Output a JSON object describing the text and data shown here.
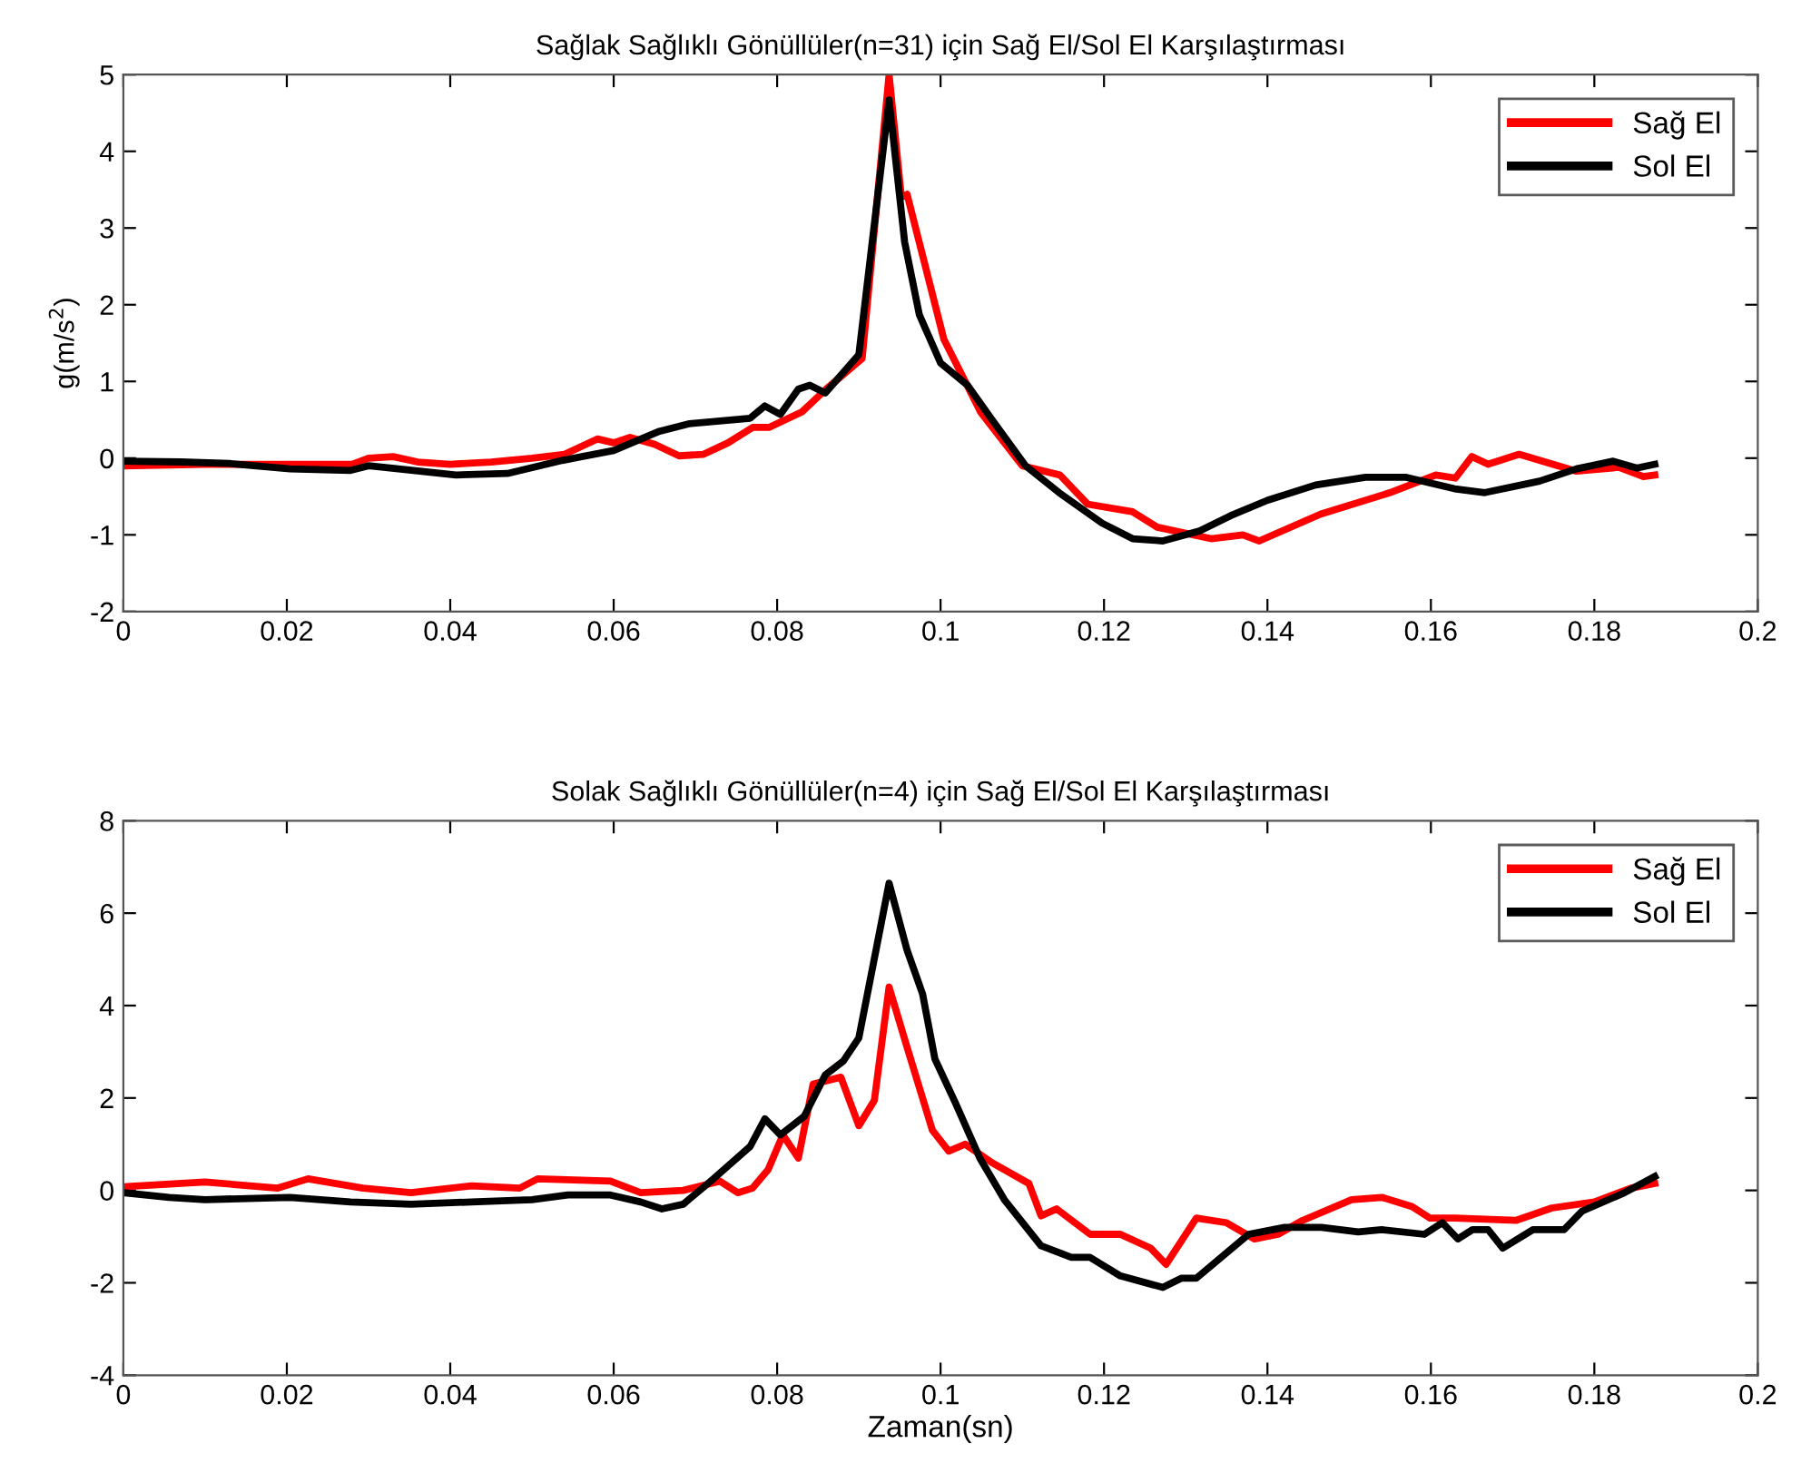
{
  "chart_data": [
    {
      "type": "line",
      "title": "Sağlak Sağlıklı Gönüllüler(n=31) için Sağ El/Sol El Karşılaştırması",
      "ylabel": "g(m/s$^{2}$)",
      "xlim": [
        0,
        0.2
      ],
      "ylim": [
        -2,
        5
      ],
      "xticks": [
        0,
        0.02,
        0.04,
        0.06,
        0.08,
        0.1,
        0.12,
        0.14,
        0.16,
        0.18,
        0.2
      ],
      "yticks": [
        -2,
        -1,
        0,
        1,
        2,
        3,
        4,
        5
      ],
      "grid": false,
      "legend": "top right",
      "marker": "none",
      "line_style": "solid",
      "series": [
        {
          "name": "Sağ El",
          "color": "#ff0000",
          "x": [
            0,
            0.01,
            0.02,
            0.028,
            0.03,
            0.033,
            0.036,
            0.04,
            0.045,
            0.05,
            0.054,
            0.058,
            0.06,
            0.062,
            0.065,
            0.068,
            0.071,
            0.074,
            0.077,
            0.079,
            0.083,
            0.086,
            0.0904,
            0.0937,
            0.0952,
            0.0959,
            0.1004,
            0.1049,
            0.11,
            0.1146,
            0.118,
            0.1235,
            0.1265,
            0.1331,
            0.137,
            0.139,
            0.1465,
            0.155,
            0.1606,
            0.163,
            0.165,
            0.167,
            0.1708,
            0.1778,
            0.183,
            0.186,
            0.1874
          ],
          "values": [
            -0.1,
            -0.08,
            -0.08,
            -0.08,
            0,
            0.02,
            -0.05,
            -0.08,
            -0.05,
            0,
            0.05,
            0.25,
            0.2,
            0.27,
            0.18,
            0.03,
            0.05,
            0.2,
            0.4,
            0.4,
            0.6,
            0.9,
            1.3,
            5.0,
            3.4,
            3.44,
            1.55,
            0.6,
            -0.1,
            -0.22,
            -0.6,
            -0.7,
            -0.9,
            -1.05,
            -1.0,
            -1.08,
            -0.73,
            -0.45,
            -0.22,
            -0.26,
            0.02,
            -0.08,
            0.05,
            -0.17,
            -0.12,
            -0.24,
            -0.22
          ]
        },
        {
          "name": "Sol El",
          "color": "#000000",
          "x": [
            0,
            0.007,
            0.013,
            0.0204,
            0.0278,
            0.03,
            0.0407,
            0.047,
            0.0537,
            0.06,
            0.0656,
            0.0693,
            0.0767,
            0.0785,
            0.0804,
            0.0826,
            0.084,
            0.0859,
            0.09,
            0.0937,
            0.0956,
            0.0974,
            0.1,
            0.1033,
            0.1063,
            0.1104,
            0.1145,
            0.1198,
            0.1235,
            0.1272,
            0.1317,
            0.1355,
            0.14,
            0.1459,
            0.152,
            0.157,
            0.1629,
            0.1666,
            0.1733,
            0.1778,
            0.1823,
            0.1852,
            0.1874
          ],
          "values": [
            -0.04,
            -0.05,
            -0.07,
            -0.14,
            -0.16,
            -0.1,
            -0.22,
            -0.2,
            -0.03,
            0.1,
            0.35,
            0.45,
            0.52,
            0.68,
            0.57,
            0.9,
            0.95,
            0.85,
            1.35,
            4.67,
            2.82,
            1.87,
            1.24,
            0.95,
            0.5,
            -0.1,
            -0.45,
            -0.85,
            -1.05,
            -1.08,
            -0.95,
            -0.75,
            -0.55,
            -0.35,
            -0.25,
            -0.25,
            -0.4,
            -0.45,
            -0.3,
            -0.14,
            -0.04,
            -0.13,
            -0.08
          ]
        }
      ]
    },
    {
      "type": "line",
      "title": "Solak Sağlıklı Gönüllüler(n=4) için Sağ El/Sol El Karşılaştırması",
      "xlabel": "Zaman(sn)",
      "xlim": [
        0,
        0.2
      ],
      "ylim": [
        -4,
        8
      ],
      "xticks": [
        0,
        0.02,
        0.04,
        0.06,
        0.08,
        0.1,
        0.12,
        0.14,
        0.16,
        0.18,
        0.2
      ],
      "yticks": [
        -4,
        -2,
        0,
        2,
        4,
        6,
        8
      ],
      "grid": false,
      "legend": "top right",
      "marker": "none",
      "line_style": "solid",
      "series": [
        {
          "name": "Sağ El",
          "color": "#ff0000",
          "x": [
            0,
            0.01,
            0.0189,
            0.0226,
            0.0293,
            0.0352,
            0.0426,
            0.0485,
            0.0507,
            0.0596,
            0.0633,
            0.0685,
            0.073,
            0.0752,
            0.077,
            0.0789,
            0.0807,
            0.0826,
            0.0844,
            0.0878,
            0.09,
            0.0919,
            0.0937,
            0.0959,
            0.099,
            0.101,
            0.103,
            0.1063,
            0.1108,
            0.1123,
            0.1142,
            0.1183,
            0.122,
            0.1257,
            0.1276,
            0.1313,
            0.135,
            0.1384,
            0.1413,
            0.1443,
            0.1503,
            0.154,
            0.1577,
            0.1599,
            0.1629,
            0.1704,
            0.1748,
            0.18,
            0.1845,
            0.1874
          ],
          "values": [
            0.08,
            0.18,
            0.05,
            0.25,
            0.05,
            -0.05,
            0.1,
            0.05,
            0.25,
            0.2,
            -0.05,
            0,
            0.2,
            -0.05,
            0.05,
            0.45,
            1.2,
            0.7,
            2.3,
            2.45,
            1.4,
            1.95,
            4.4,
            3.1,
            1.3,
            0.85,
            1.0,
            0.6,
            0.15,
            -0.55,
            -0.4,
            -0.95,
            -0.95,
            -1.25,
            -1.6,
            -0.6,
            -0.7,
            -1.05,
            -0.95,
            -0.65,
            -0.2,
            -0.15,
            -0.35,
            -0.6,
            -0.6,
            -0.65,
            -0.38,
            -0.25,
            0.05,
            0.15
          ]
        },
        {
          "name": "Sol El",
          "color": "#000000",
          "x": [
            0,
            0.0056,
            0.01,
            0.0204,
            0.0278,
            0.0352,
            0.0426,
            0.05,
            0.0544,
            0.0596,
            0.0633,
            0.0659,
            0.0685,
            0.0722,
            0.0767,
            0.0785,
            0.0804,
            0.0833,
            0.0859,
            0.0881,
            0.09,
            0.0937,
            0.0959,
            0.0978,
            0.0993,
            0.1018,
            0.1048,
            0.1078,
            0.1123,
            0.116,
            0.1183,
            0.122,
            0.1272,
            0.1295,
            0.1313,
            0.1377,
            0.1421,
            0.1466,
            0.1511,
            0.154,
            0.1592,
            0.1614,
            0.1633,
            0.1651,
            0.167,
            0.1688,
            0.1725,
            0.1763,
            0.1785,
            0.1837,
            0.1874
          ],
          "values": [
            -0.05,
            -0.15,
            -0.2,
            -0.15,
            -0.25,
            -0.3,
            -0.25,
            -0.2,
            -0.1,
            -0.1,
            -0.25,
            -0.4,
            -0.3,
            0.25,
            0.95,
            1.55,
            1.2,
            1.6,
            2.5,
            2.8,
            3.3,
            6.65,
            5.2,
            4.25,
            2.85,
            1.9,
            0.7,
            -0.2,
            -1.2,
            -1.45,
            -1.45,
            -1.85,
            -2.1,
            -1.9,
            -1.9,
            -0.95,
            -0.8,
            -0.8,
            -0.9,
            -0.85,
            -0.95,
            -0.7,
            -1.05,
            -0.85,
            -0.85,
            -1.25,
            -0.85,
            -0.85,
            -0.45,
            -0.05,
            0.3
          ]
        }
      ]
    }
  ]
}
